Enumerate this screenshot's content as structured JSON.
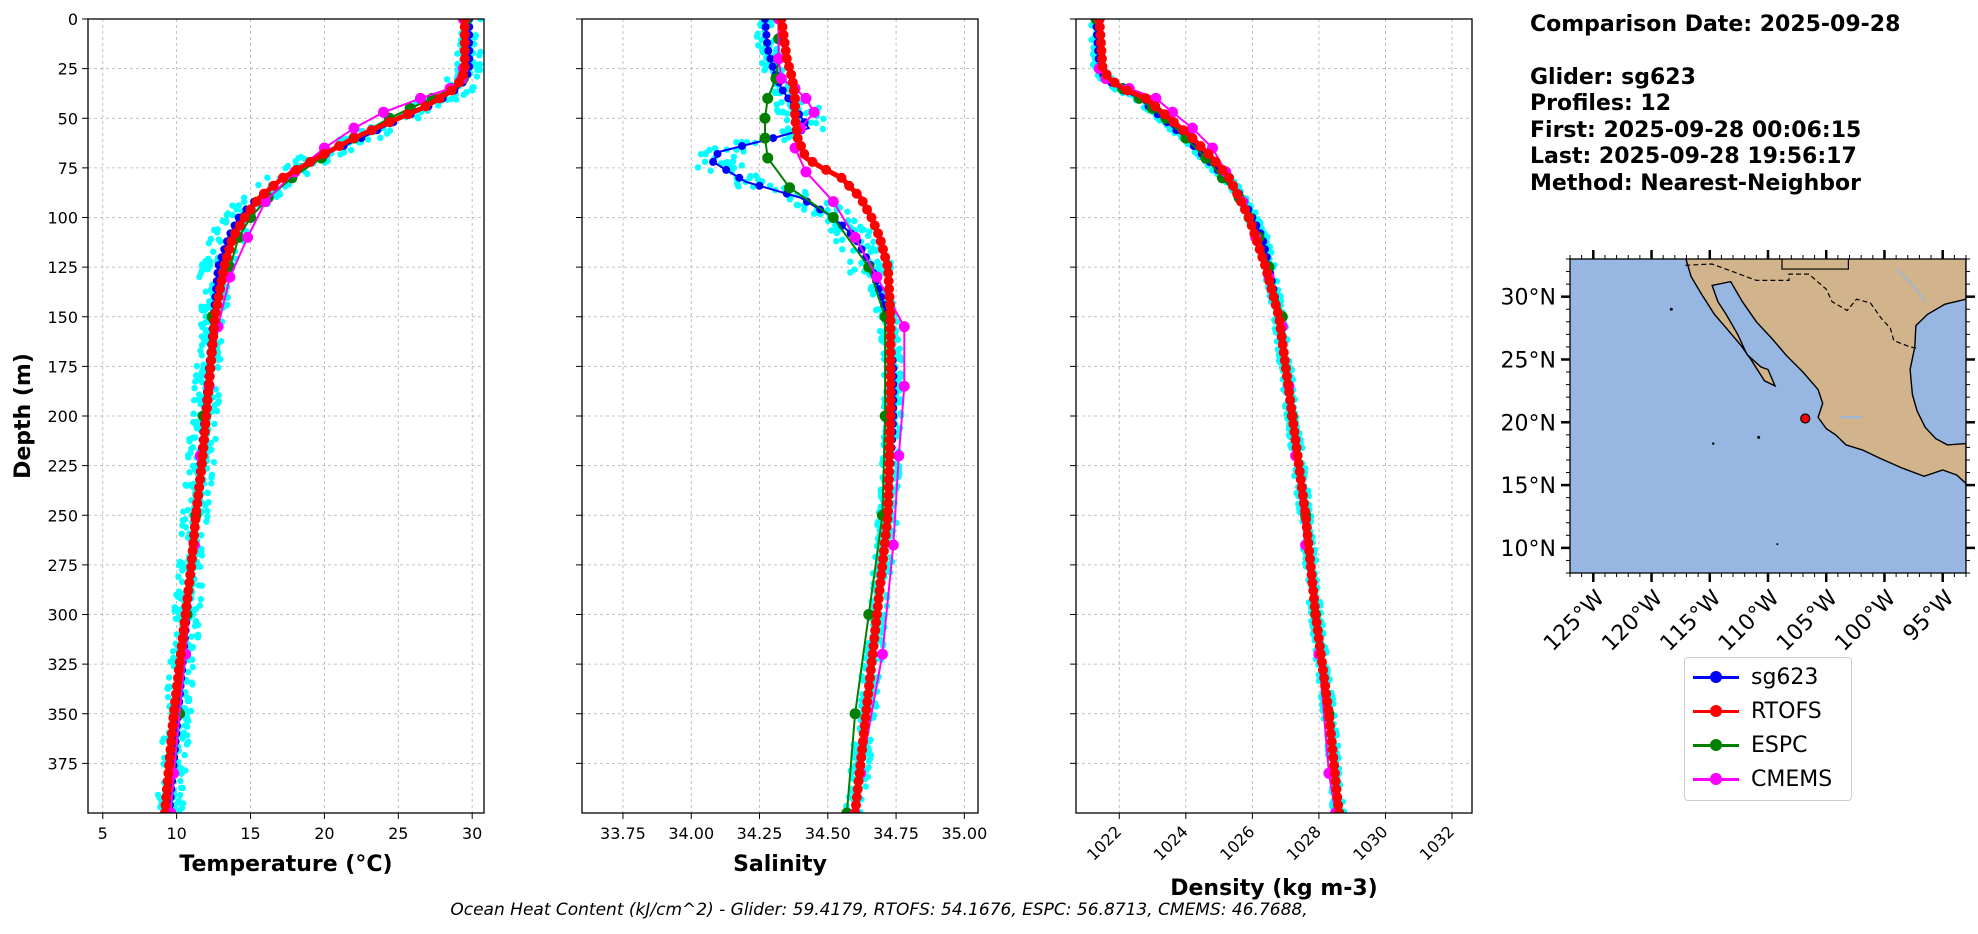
{
  "info": {
    "comparison_date": "Comparison Date: 2025-09-28",
    "glider": "Glider: sg623",
    "profiles": "Profiles: 12",
    "first": "First: 2025-09-28 00:06:15",
    "last": "Last: 2025-09-28 19:56:17",
    "method": "Method: Nearest-Neighbor"
  },
  "footnote": "Ocean Heat Content (kJ/cm^2) - Glider: 59.4179,  RTOFS: 54.1676,  ESPC: 56.8713,  CMEMS: 46.7688,",
  "colors": {
    "sg623": "#0000ff",
    "RTOFS": "#ff0000",
    "ESPC": "#008000",
    "CMEMS": "#ff00ff",
    "glider_scatter": "#00ffff",
    "land": "#d2b48c",
    "ocean": "#97b6e1"
  },
  "legend": [
    {
      "name": "sg623",
      "color": "#0000ff"
    },
    {
      "name": "RTOFS",
      "color": "#ff0000"
    },
    {
      "name": "ESPC",
      "color": "#008000"
    },
    {
      "name": "CMEMS",
      "color": "#ff00ff"
    }
  ],
  "chart_data": [
    {
      "type": "line",
      "xlabel": "Temperature (°C)",
      "ylabel": "Depth (m)",
      "xlim": [
        4,
        30.8
      ],
      "ylim": [
        400,
        0
      ],
      "xticks": [
        5,
        10,
        15,
        20,
        25,
        30
      ],
      "yticks": [
        0,
        25,
        50,
        75,
        100,
        125,
        150,
        175,
        200,
        225,
        250,
        275,
        300,
        325,
        350,
        375
      ],
      "grid": true,
      "series": [
        {
          "name": "sg623",
          "depth": [
            0,
            25,
            30,
            35,
            40,
            45,
            50,
            60,
            70,
            80,
            90,
            100,
            110,
            125,
            150,
            175,
            200,
            225,
            250,
            275,
            300,
            325,
            350,
            375,
            400
          ],
          "values": [
            29.8,
            29.8,
            29.6,
            29.0,
            28.0,
            26.8,
            25.2,
            22.5,
            19.5,
            17.2,
            15.5,
            14.2,
            13.5,
            12.8,
            12.5,
            12.2,
            11.9,
            11.6,
            11.3,
            11.0,
            10.7,
            10.4,
            10.1,
            9.8,
            9.5
          ]
        },
        {
          "name": "RTOFS",
          "depth": [
            0,
            25,
            30,
            35,
            40,
            45,
            50,
            60,
            70,
            80,
            90,
            100,
            110,
            125,
            150,
            175,
            200,
            225,
            250,
            275,
            300,
            325,
            350,
            375,
            400
          ],
          "values": [
            29.5,
            29.5,
            29.3,
            28.8,
            27.8,
            26.6,
            25.0,
            22.0,
            19.5,
            17.2,
            15.6,
            14.6,
            13.8,
            13.2,
            12.6,
            12.3,
            12.0,
            11.7,
            11.3,
            11.0,
            10.6,
            10.2,
            9.8,
            9.5,
            9.2
          ]
        },
        {
          "name": "ESPC",
          "depth": [
            0,
            30,
            35,
            40,
            45,
            50,
            60,
            70,
            80,
            90,
            100,
            110,
            125,
            150,
            200,
            250,
            300,
            350,
            400
          ],
          "values": [
            29.6,
            29.4,
            28.6,
            27.3,
            25.8,
            24.4,
            22.0,
            19.8,
            17.8,
            16.2,
            15.0,
            14.2,
            13.6,
            12.4,
            11.8,
            11.3,
            10.7,
            10.2,
            9.6
          ]
        },
        {
          "name": "CMEMS",
          "depth": [
            0,
            25,
            30,
            35,
            40,
            47,
            55,
            65,
            77,
            92,
            110,
            130,
            155,
            185,
            220,
            265,
            320,
            380,
            400
          ],
          "values": [
            29.4,
            29.4,
            29.3,
            28.5,
            26.5,
            24.0,
            22.0,
            20.0,
            18.0,
            16.0,
            14.8,
            13.6,
            12.8,
            12.2,
            11.6,
            11.2,
            10.6,
            9.8,
            9.6
          ]
        }
      ]
    },
    {
      "type": "line",
      "xlabel": "Salinity",
      "xlim": [
        33.6,
        35.05
      ],
      "ylim": [
        400,
        0
      ],
      "xticks": [
        33.75,
        34.0,
        34.25,
        34.5,
        34.75,
        35.0
      ],
      "xtick_labels": [
        "33.75",
        "34.00",
        "34.25",
        "34.50",
        "34.75",
        "35.00"
      ],
      "grid": true,
      "series": [
        {
          "name": "sg623",
          "depth": [
            0,
            15,
            25,
            35,
            45,
            55,
            60,
            67,
            72,
            82,
            90,
            100,
            110,
            125,
            150,
            175,
            200,
            250,
            300,
            350,
            400
          ],
          "values": [
            34.27,
            34.28,
            34.3,
            34.33,
            34.38,
            34.43,
            34.3,
            34.1,
            34.08,
            34.2,
            34.4,
            34.52,
            34.6,
            34.66,
            34.72,
            34.74,
            34.74,
            34.72,
            34.68,
            34.64,
            34.6
          ]
        },
        {
          "name": "RTOFS",
          "depth": [
            0,
            10,
            20,
            30,
            40,
            50,
            60,
            70,
            75,
            80,
            90,
            100,
            110,
            125,
            150,
            175,
            200,
            250,
            300,
            350,
            400
          ],
          "values": [
            34.33,
            34.34,
            34.35,
            34.37,
            34.38,
            34.38,
            34.39,
            34.42,
            34.48,
            34.55,
            34.62,
            34.66,
            34.69,
            34.72,
            34.73,
            34.73,
            34.73,
            34.72,
            34.68,
            34.64,
            34.6
          ]
        },
        {
          "name": "ESPC",
          "depth": [
            0,
            10,
            20,
            30,
            40,
            50,
            60,
            70,
            85,
            100,
            125,
            150,
            200,
            250,
            300,
            350,
            400
          ],
          "values": [
            34.32,
            34.32,
            34.32,
            34.31,
            34.28,
            34.27,
            34.27,
            34.28,
            34.36,
            34.52,
            34.65,
            34.71,
            34.71,
            34.7,
            34.65,
            34.6,
            34.57
          ]
        },
        {
          "name": "CMEMS",
          "depth": [
            0,
            20,
            30,
            35,
            40,
            47,
            55,
            65,
            77,
            92,
            110,
            130,
            155,
            185,
            220,
            265,
            320,
            380,
            400
          ],
          "values": [
            34.32,
            34.32,
            34.33,
            34.38,
            34.42,
            34.45,
            34.4,
            34.38,
            34.42,
            34.52,
            34.6,
            34.68,
            34.78,
            34.78,
            34.76,
            34.74,
            34.7,
            34.62,
            34.6
          ]
        }
      ]
    },
    {
      "type": "line",
      "xlabel": "Density (kg m-3)",
      "xlim": [
        1020.7,
        1032.6
      ],
      "ylim": [
        400,
        0
      ],
      "xticks": [
        1022,
        1024,
        1026,
        1028,
        1030,
        1032
      ],
      "grid": true,
      "series": [
        {
          "name": "sg623",
          "depth": [
            0,
            25,
            30,
            35,
            40,
            50,
            60,
            70,
            80,
            90,
            100,
            110,
            125,
            150,
            175,
            200,
            250,
            300,
            350,
            400
          ],
          "values": [
            1021.3,
            1021.4,
            1021.6,
            1022.0,
            1022.6,
            1023.3,
            1024.0,
            1024.6,
            1025.2,
            1025.7,
            1026.0,
            1026.3,
            1026.5,
            1026.8,
            1027.0,
            1027.2,
            1027.6,
            1027.9,
            1028.3,
            1028.6
          ]
        },
        {
          "name": "RTOFS",
          "depth": [
            0,
            25,
            30,
            35,
            40,
            50,
            60,
            70,
            80,
            90,
            100,
            110,
            125,
            150,
            175,
            200,
            250,
            300,
            350,
            400
          ],
          "values": [
            1021.4,
            1021.5,
            1021.7,
            1022.1,
            1022.8,
            1023.5,
            1024.2,
            1024.8,
            1025.3,
            1025.6,
            1025.9,
            1026.1,
            1026.4,
            1026.8,
            1027.0,
            1027.2,
            1027.6,
            1027.9,
            1028.3,
            1028.6
          ]
        },
        {
          "name": "ESPC",
          "depth": [
            0,
            30,
            35,
            40,
            45,
            50,
            60,
            70,
            80,
            90,
            100,
            110,
            125,
            150,
            200,
            250,
            300,
            350,
            400
          ],
          "values": [
            1021.3,
            1021.6,
            1022.1,
            1022.6,
            1023.0,
            1023.4,
            1024.0,
            1024.6,
            1025.1,
            1025.6,
            1025.9,
            1026.2,
            1026.5,
            1026.9,
            1027.2,
            1027.6,
            1027.9,
            1028.3,
            1028.6
          ]
        },
        {
          "name": "CMEMS",
          "depth": [
            0,
            25,
            30,
            35,
            40,
            47,
            55,
            65,
            77,
            92,
            110,
            130,
            155,
            185,
            220,
            265,
            320,
            380,
            400
          ],
          "values": [
            1021.4,
            1021.4,
            1021.6,
            1022.3,
            1023.1,
            1023.6,
            1024.2,
            1024.8,
            1025.2,
            1025.7,
            1026.1,
            1026.5,
            1026.9,
            1027.1,
            1027.3,
            1027.6,
            1028.0,
            1028.3,
            1028.5
          ]
        }
      ]
    },
    {
      "type": "map",
      "lon_range": [
        -127,
        -93
      ],
      "lat_range": [
        8,
        33
      ],
      "lon_ticks": [
        "125°W",
        "120°W",
        "115°W",
        "110°W",
        "105°W",
        "100°W",
        "95°W"
      ],
      "lon_values": [
        -125,
        -120,
        -115,
        -110,
        -105,
        -100,
        -95
      ],
      "lat_ticks": [
        "30°N",
        "25°N",
        "20°N",
        "15°N",
        "10°N"
      ],
      "lat_values": [
        30,
        25,
        20,
        15,
        10
      ],
      "glider_position": {
        "lon": -106.8,
        "lat": 20.3
      }
    }
  ]
}
